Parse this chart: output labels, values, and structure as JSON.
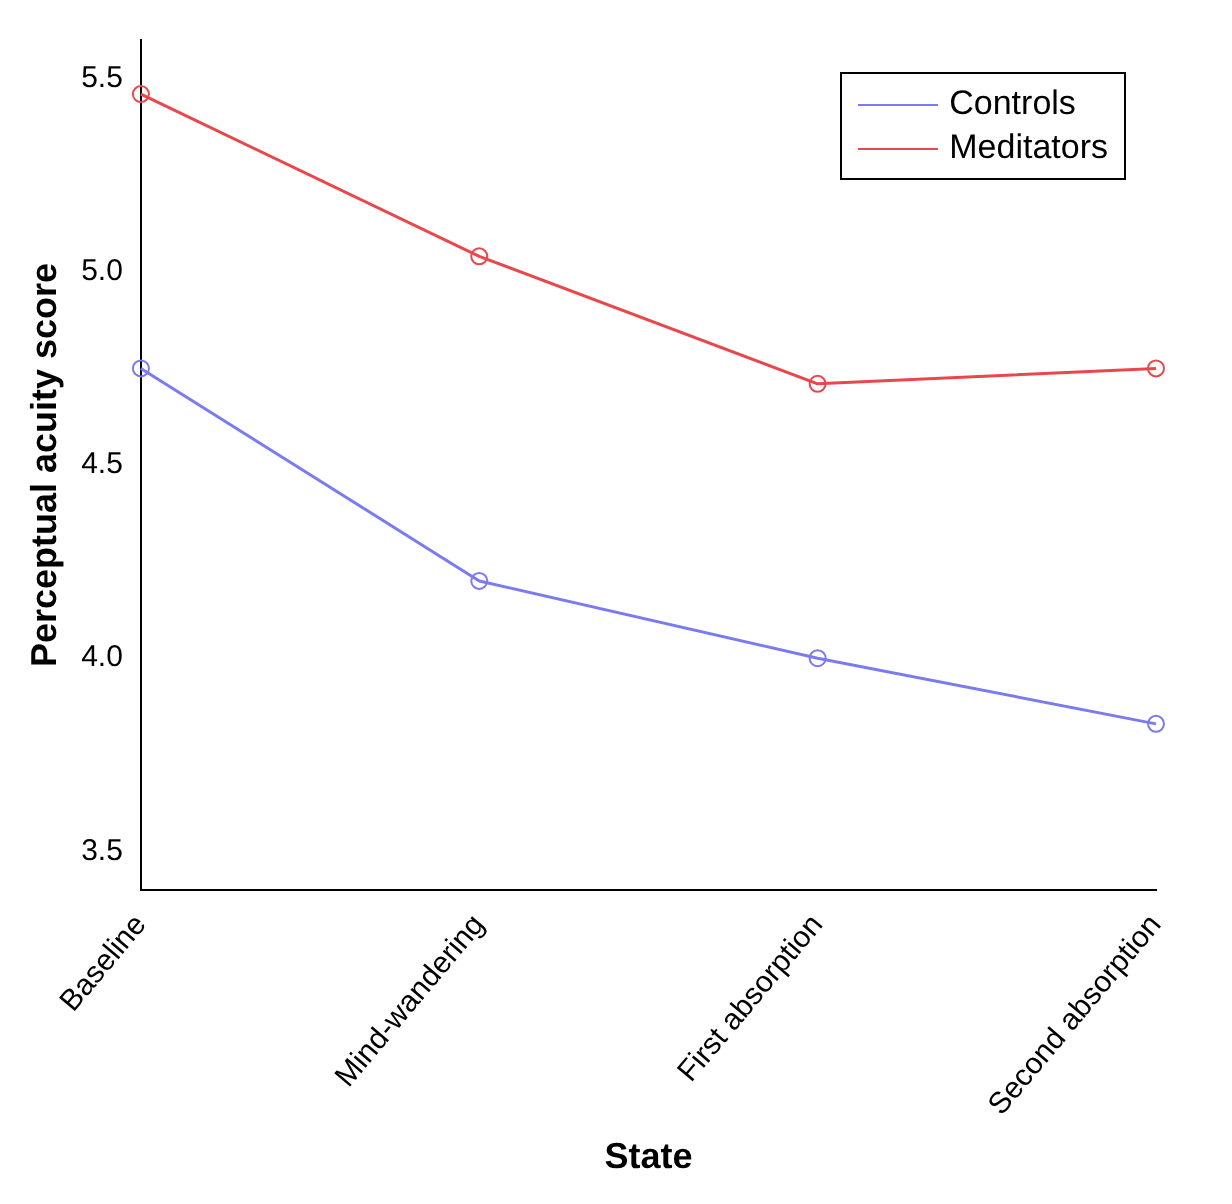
{
  "chart_data": {
    "type": "line",
    "xlabel": "State",
    "ylabel": "Perceptual acuity score",
    "categories": [
      "Baseline",
      "Mind-wandering",
      "First absorption",
      "Second absorption"
    ],
    "series": [
      {
        "name": "Controls",
        "color": "#7b7bf0",
        "values": [
          4.75,
          4.2,
          4.0,
          3.83
        ]
      },
      {
        "name": "Meditators",
        "color": "#e8474c",
        "values": [
          5.46,
          5.04,
          4.71,
          4.75
        ]
      }
    ],
    "ylim": [
      3.4,
      5.6
    ],
    "yticks": [
      3.5,
      {
        "value": 4,
        "label": "4.0"
      },
      4.5,
      {
        "value": 5,
        "label": "5.0"
      },
      5.5
    ],
    "grid": false,
    "legend": "top right",
    "marker": "circle",
    "line_style": "solid"
  }
}
